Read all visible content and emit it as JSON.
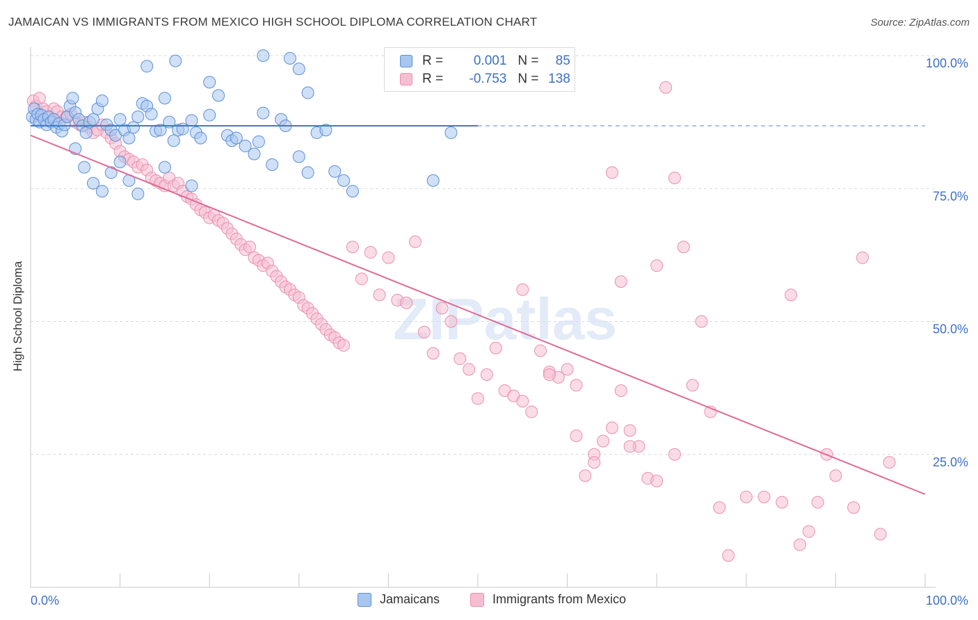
{
  "header": {
    "title": "JAMAICAN VS IMMIGRANTS FROM MEXICO HIGH SCHOOL DIPLOMA CORRELATION CHART",
    "source": "Source: ZipAtlas.com"
  },
  "watermark": "ZIPatlas",
  "legend_top": [
    {
      "r_label": "R =",
      "r_value": "0.001",
      "n_label": "N =",
      "n_value": "85"
    },
    {
      "r_label": "R =",
      "r_value": "-0.753",
      "n_label": "N =",
      "n_value": "138"
    }
  ],
  "colors": {
    "blue_fill": "#a9c6f0",
    "blue_stroke": "#5b8fd6",
    "blue_line": "#3d79cf",
    "pink_fill": "#f6bfd1",
    "pink_stroke": "#ea8fb0",
    "pink_line": "#e06894",
    "axis_text": "#3d6fc4",
    "grid": "#d8d8d8"
  },
  "chart_data": {
    "type": "scatter",
    "title": "JAMAICAN VS IMMIGRANTS FROM MEXICO HIGH SCHOOL DIPLOMA CORRELATION CHART",
    "xlabel": "",
    "ylabel": "High School Diploma",
    "xlim": [
      0,
      100
    ],
    "ylim": [
      0,
      100
    ],
    "x_tick_labels": [
      "0.0%",
      "100.0%"
    ],
    "y_tick_labels": [
      "25.0%",
      "50.0%",
      "75.0%",
      "100.0%"
    ],
    "y_ticks": [
      25,
      50,
      75,
      100
    ],
    "legend_position": "bottom",
    "series": [
      {
        "name": "Jamaicans",
        "r": 0.001,
        "n": 85,
        "trend": {
          "x": [
            0,
            50
          ],
          "y": [
            86.8,
            86.8
          ],
          "extended_dashed_to": 100
        },
        "points": [
          [
            0.2,
            88.5
          ],
          [
            0.4,
            90
          ],
          [
            0.6,
            88
          ],
          [
            0.8,
            89
          ],
          [
            1,
            87.5
          ],
          [
            1.2,
            88.8
          ],
          [
            1.5,
            88
          ],
          [
            1.8,
            87
          ],
          [
            2,
            88.5
          ],
          [
            2.3,
            87.5
          ],
          [
            2.6,
            88
          ],
          [
            2.9,
            86.5
          ],
          [
            3.2,
            87.2
          ],
          [
            3.5,
            85.8
          ],
          [
            3.8,
            87
          ],
          [
            4.1,
            88.5
          ],
          [
            4.4,
            90.5
          ],
          [
            4.7,
            92
          ],
          [
            5,
            89.3
          ],
          [
            5.4,
            88
          ],
          [
            5.8,
            86.8
          ],
          [
            6.2,
            85.5
          ],
          [
            6.6,
            87.5
          ],
          [
            7,
            88
          ],
          [
            7.5,
            90
          ],
          [
            8,
            91.5
          ],
          [
            8.5,
            87
          ],
          [
            9,
            86
          ],
          [
            9.5,
            85
          ],
          [
            10,
            88
          ],
          [
            10.5,
            86
          ],
          [
            11,
            84.5
          ],
          [
            11.5,
            86.5
          ],
          [
            12,
            88.5
          ],
          [
            12.5,
            91
          ],
          [
            13,
            90.5
          ],
          [
            13.5,
            89
          ],
          [
            14,
            85.8
          ],
          [
            14.5,
            86
          ],
          [
            15,
            92
          ],
          [
            15.5,
            87.5
          ],
          [
            16,
            84
          ],
          [
            16.5,
            86
          ],
          [
            17,
            86.2
          ],
          [
            18,
            87.8
          ],
          [
            18.5,
            85.5
          ],
          [
            19,
            84.5
          ],
          [
            20,
            88.8
          ],
          [
            21,
            92.5
          ],
          [
            22,
            85
          ],
          [
            22.5,
            84
          ],
          [
            23,
            84.5
          ],
          [
            24,
            83
          ],
          [
            25,
            81.5
          ],
          [
            25.5,
            83.8
          ],
          [
            26,
            89.2
          ],
          [
            27,
            79.5
          ],
          [
            28,
            88
          ],
          [
            28.5,
            86.8
          ],
          [
            30,
            81
          ],
          [
            31,
            78
          ],
          [
            32,
            85.5
          ],
          [
            33,
            86
          ],
          [
            34,
            78.2
          ],
          [
            35,
            76.5
          ],
          [
            36,
            74.5
          ],
          [
            13,
            98
          ],
          [
            16.2,
            99
          ],
          [
            20,
            95
          ],
          [
            26,
            100
          ],
          [
            29,
            99.5
          ],
          [
            30,
            97.5
          ],
          [
            31,
            93
          ],
          [
            5,
            82.5
          ],
          [
            6,
            79
          ],
          [
            7,
            76
          ],
          [
            8,
            74.5
          ],
          [
            9,
            78
          ],
          [
            10,
            80
          ],
          [
            11,
            76.5
          ],
          [
            12,
            74
          ],
          [
            15,
            79
          ],
          [
            18,
            75.5
          ],
          [
            45,
            76.5
          ],
          [
            47,
            85.5
          ]
        ]
      },
      {
        "name": "Immigrants from Mexico",
        "r": -0.753,
        "n": 138,
        "trend": {
          "x": [
            0,
            100
          ],
          "y": [
            85,
            17.5
          ]
        },
        "points": [
          [
            0.3,
            91.5
          ],
          [
            0.6,
            90.5
          ],
          [
            1,
            92
          ],
          [
            1.4,
            90
          ],
          [
            1.8,
            89.5
          ],
          [
            2.2,
            88.5
          ],
          [
            2.6,
            90
          ],
          [
            3,
            89.5
          ],
          [
            3.5,
            88.5
          ],
          [
            4,
            88.5
          ],
          [
            4.5,
            89
          ],
          [
            5,
            87.5
          ],
          [
            5.5,
            87
          ],
          [
            6,
            87.5
          ],
          [
            6.5,
            86.5
          ],
          [
            7,
            85.5
          ],
          [
            7.5,
            86
          ],
          [
            8,
            87
          ],
          [
            8.5,
            85.5
          ],
          [
            9,
            84.5
          ],
          [
            9.5,
            83.5
          ],
          [
            10,
            82
          ],
          [
            10.5,
            81
          ],
          [
            11,
            80.5
          ],
          [
            11.5,
            80
          ],
          [
            12,
            79
          ],
          [
            12.5,
            79.5
          ],
          [
            13,
            78.5
          ],
          [
            13.5,
            77
          ],
          [
            14,
            76.5
          ],
          [
            14.5,
            76
          ],
          [
            15,
            75.5
          ],
          [
            15.5,
            77
          ],
          [
            16,
            75.5
          ],
          [
            16.5,
            76
          ],
          [
            17,
            74.5
          ],
          [
            17.5,
            73.5
          ],
          [
            18,
            73
          ],
          [
            18.5,
            72
          ],
          [
            19,
            71
          ],
          [
            19.5,
            70.5
          ],
          [
            20,
            69.5
          ],
          [
            20.5,
            70
          ],
          [
            21,
            69
          ],
          [
            21.5,
            68.5
          ],
          [
            22,
            67.5
          ],
          [
            22.5,
            66.5
          ],
          [
            23,
            65.5
          ],
          [
            23.5,
            64.5
          ],
          [
            24,
            63.5
          ],
          [
            24.5,
            64
          ],
          [
            25,
            62
          ],
          [
            25.5,
            61.5
          ],
          [
            26,
            60.5
          ],
          [
            26.5,
            61
          ],
          [
            27,
            59.5
          ],
          [
            27.5,
            58.5
          ],
          [
            28,
            57.5
          ],
          [
            28.5,
            56.5
          ],
          [
            29,
            56
          ],
          [
            29.5,
            55
          ],
          [
            30,
            54.5
          ],
          [
            30.5,
            53
          ],
          [
            31,
            52.5
          ],
          [
            31.5,
            51.5
          ],
          [
            32,
            50.5
          ],
          [
            32.5,
            49.5
          ],
          [
            33,
            48.5
          ],
          [
            33.5,
            47.5
          ],
          [
            34,
            47
          ],
          [
            34.5,
            46
          ],
          [
            35,
            45.5
          ],
          [
            36,
            64
          ],
          [
            37,
            58
          ],
          [
            38,
            63
          ],
          [
            39,
            55
          ],
          [
            40,
            62
          ],
          [
            41,
            54
          ],
          [
            42,
            53.5
          ],
          [
            43,
            65
          ],
          [
            44,
            48
          ],
          [
            45,
            44
          ],
          [
            46,
            52.5
          ],
          [
            47,
            50
          ],
          [
            48,
            43
          ],
          [
            49,
            41
          ],
          [
            50,
            35.5
          ],
          [
            51,
            40
          ],
          [
            52,
            45
          ],
          [
            53,
            37
          ],
          [
            54,
            36
          ],
          [
            55,
            35
          ],
          [
            56,
            33
          ],
          [
            57,
            44.5
          ],
          [
            58,
            40.5
          ],
          [
            59,
            39.5
          ],
          [
            60,
            41
          ],
          [
            61,
            28.5
          ],
          [
            62,
            21
          ],
          [
            63,
            25
          ],
          [
            64,
            27.5
          ],
          [
            65,
            30
          ],
          [
            66,
            37
          ],
          [
            67,
            29.5
          ],
          [
            68,
            26.5
          ],
          [
            69,
            20.5
          ],
          [
            70,
            60.5
          ],
          [
            71,
            94
          ],
          [
            72,
            77
          ],
          [
            73,
            64
          ],
          [
            74,
            38
          ],
          [
            75,
            50
          ],
          [
            76,
            33
          ],
          [
            77,
            15
          ],
          [
            78,
            6
          ],
          [
            80,
            17
          ],
          [
            82,
            17
          ],
          [
            84,
            16
          ],
          [
            85,
            55
          ],
          [
            86,
            8
          ],
          [
            87,
            10.5
          ],
          [
            88,
            16
          ],
          [
            89,
            25
          ],
          [
            90,
            21
          ],
          [
            92,
            15
          ],
          [
            93,
            62
          ],
          [
            95,
            10
          ],
          [
            96,
            23.5
          ],
          [
            60,
            100
          ],
          [
            65,
            78
          ],
          [
            66,
            57.5
          ],
          [
            55,
            56
          ],
          [
            58,
            40
          ],
          [
            61,
            38
          ],
          [
            63,
            23.5
          ],
          [
            70,
            20
          ],
          [
            72,
            25
          ],
          [
            67,
            26.5
          ]
        ]
      }
    ]
  },
  "bottom_legend": [
    {
      "label": "Jamaicans"
    },
    {
      "label": "Immigrants from Mexico"
    }
  ]
}
